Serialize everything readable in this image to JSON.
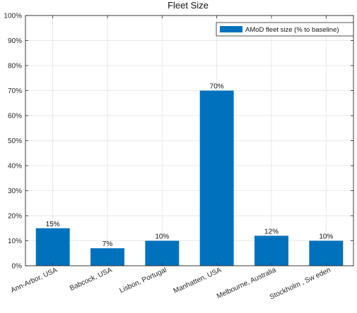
{
  "chart_data": {
    "type": "bar",
    "title": "Fleet Size",
    "xlabel": "",
    "ylabel": "",
    "categories": [
      "Ann-Arbor, USA",
      "Babcock, USA",
      "Lisbon, Portugal",
      "Manhatten, USA",
      "Melbourne,   Australia",
      "Stockholm   , Sw eden"
    ],
    "series": [
      {
        "name": "AMoD fleet size (% to baseline)",
        "values": [
          15,
          7,
          10,
          70,
          12,
          10
        ]
      }
    ],
    "data_labels": [
      "15%",
      "7%",
      "10%",
      "70%",
      "12%",
      "10%"
    ],
    "ylim": [
      0,
      100
    ],
    "yticks": [
      0,
      10,
      20,
      30,
      40,
      50,
      60,
      70,
      80,
      90,
      100
    ],
    "ytick_labels": [
      "0%",
      "10%",
      "20%",
      "30%",
      "40%",
      "50%",
      "60%",
      "70%",
      "80%",
      "90%",
      "100%"
    ],
    "grid": true,
    "legend_position": "top-right",
    "bar_color": "#0072BD"
  }
}
